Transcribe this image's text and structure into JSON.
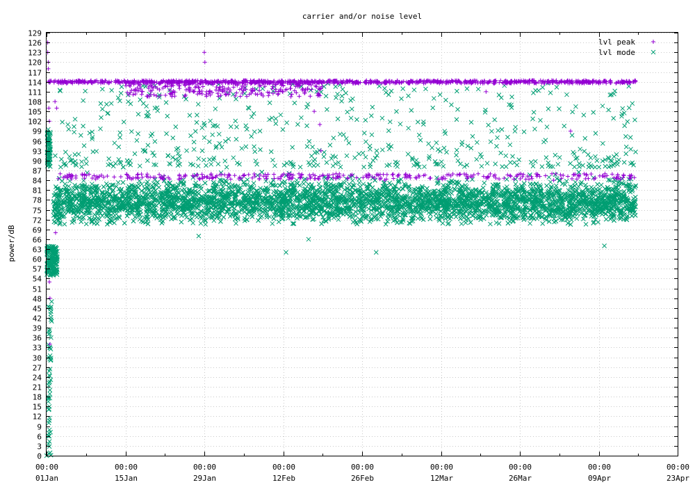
{
  "chart_data": {
    "type": "scatter",
    "title": "carrier and/or noise level",
    "xlabel": "",
    "ylabel": "power/dB",
    "ylim": [
      0,
      129
    ],
    "y_ticks": [
      0,
      3,
      6,
      9,
      12,
      15,
      18,
      21,
      24,
      27,
      30,
      33,
      36,
      39,
      42,
      45,
      48,
      51,
      54,
      57,
      60,
      63,
      66,
      69,
      72,
      75,
      78,
      81,
      84,
      87,
      90,
      93,
      96,
      99,
      102,
      105,
      108,
      111,
      114,
      117,
      120,
      123,
      126,
      129
    ],
    "xlim_days": [
      0,
      112
    ],
    "x_ticks": [
      {
        "day": 0,
        "time": "00:00",
        "date": "01Jan"
      },
      {
        "day": 14,
        "time": "00:00",
        "date": "15Jan"
      },
      {
        "day": 28,
        "time": "00:00",
        "date": "29Jan"
      },
      {
        "day": 42,
        "time": "00:00",
        "date": "12Feb"
      },
      {
        "day": 56,
        "time": "00:00",
        "date": "26Feb"
      },
      {
        "day": 70,
        "time": "00:00",
        "date": "12Mar"
      },
      {
        "day": 84,
        "time": "00:00",
        "date": "26Mar"
      },
      {
        "day": 98,
        "time": "00:00",
        "date": "09Apr"
      },
      {
        "day": 112,
        "time": "00:00",
        "date": "23Apr"
      }
    ],
    "grid": true,
    "legend_position": "top-right",
    "series": [
      {
        "name": "lvl peak",
        "marker": "+",
        "color": "#9400d3",
        "description_points": [
          {
            "day": 0.2,
            "y": 126
          },
          {
            "day": 0.2,
            "y": 123
          },
          {
            "day": 0.3,
            "y": 120
          },
          {
            "day": 0.3,
            "y": 118
          },
          {
            "day": 0.4,
            "y": 106
          },
          {
            "day": 0.5,
            "y": 102
          },
          {
            "day": 0.5,
            "y": 53
          },
          {
            "day": 0.6,
            "y": 48
          },
          {
            "day": 0.6,
            "y": 34
          },
          {
            "day": 1.5,
            "y": 108
          },
          {
            "day": 1.8,
            "y": 106
          },
          {
            "day": 1.6,
            "y": 68
          },
          {
            "day": 28.0,
            "y": 123
          },
          {
            "day": 28.1,
            "y": 120
          },
          {
            "day": 5.0,
            "y": 114
          },
          {
            "day": 15.0,
            "y": 114
          },
          {
            "day": 25.0,
            "y": 114
          },
          {
            "day": 35.0,
            "y": 114
          },
          {
            "day": 45.0,
            "y": 114
          },
          {
            "day": 55.0,
            "y": 114
          },
          {
            "day": 65.0,
            "y": 114
          },
          {
            "day": 75.0,
            "y": 114
          },
          {
            "day": 85.0,
            "y": 114
          },
          {
            "day": 95.0,
            "y": 114
          },
          {
            "day": 104.5,
            "y": 114
          },
          {
            "day": 47.5,
            "y": 105
          },
          {
            "day": 48.5,
            "y": 101
          },
          {
            "day": 48.7,
            "y": 93
          },
          {
            "day": 12.0,
            "y": 85
          },
          {
            "day": 30.0,
            "y": 85
          },
          {
            "day": 60.0,
            "y": 84
          },
          {
            "day": 90.0,
            "y": 84
          },
          {
            "day": 93.0,
            "y": 99
          },
          {
            "day": 78.0,
            "y": 111
          }
        ]
      },
      {
        "name": "lvl mode",
        "marker": "x",
        "color": "#009e73",
        "description_points": [
          {
            "day": 0.0,
            "y": 0
          },
          {
            "day": 0.3,
            "y": 6
          },
          {
            "day": 0.4,
            "y": 10
          },
          {
            "day": 0.5,
            "y": 15
          },
          {
            "day": 0.6,
            "y": 20
          },
          {
            "day": 0.8,
            "y": 36
          },
          {
            "day": 0.9,
            "y": 41
          },
          {
            "day": 0.9,
            "y": 47
          },
          {
            "day": 0.2,
            "y": 56
          },
          {
            "day": 0.5,
            "y": 60
          },
          {
            "day": 1.3,
            "y": 58
          },
          {
            "day": 1.6,
            "y": 63
          },
          {
            "day": 10.0,
            "y": 77
          },
          {
            "day": 30.0,
            "y": 77
          },
          {
            "day": 50.0,
            "y": 77
          },
          {
            "day": 70.0,
            "y": 77
          },
          {
            "day": 90.0,
            "y": 77
          },
          {
            "day": 104.0,
            "y": 76
          },
          {
            "day": 27.0,
            "y": 67
          },
          {
            "day": 42.5,
            "y": 62
          },
          {
            "day": 46.5,
            "y": 66
          },
          {
            "day": 58.5,
            "y": 62
          },
          {
            "day": 99.0,
            "y": 64
          },
          {
            "day": 20.0,
            "y": 110
          },
          {
            "day": 60.0,
            "y": 112
          },
          {
            "day": 100.0,
            "y": 110
          },
          {
            "day": 28.0,
            "y": 97
          },
          {
            "day": 40.0,
            "y": 103
          },
          {
            "day": 80.0,
            "y": 97
          }
        ]
      }
    ]
  }
}
